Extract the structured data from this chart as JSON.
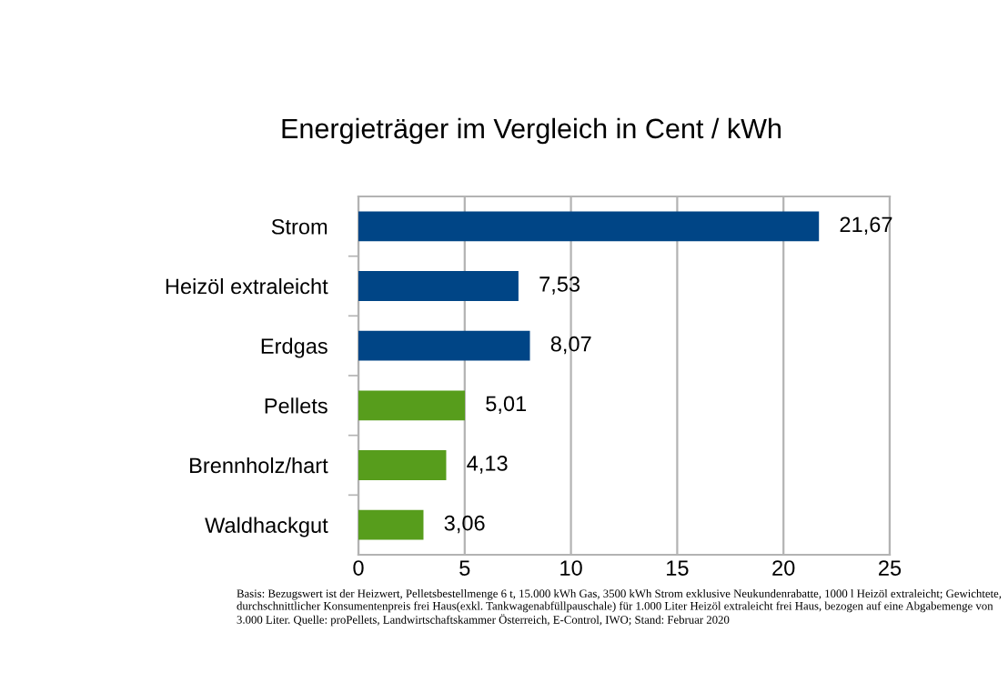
{
  "chart_data": {
    "type": "bar",
    "orientation": "horizontal",
    "title": "Energieträger im Vergleich in Cent / kWh",
    "categories": [
      "Strom",
      "Heizöl extraleicht",
      "Erdgas",
      "Pellets",
      "Brennholz/hart",
      "Waldhackgut"
    ],
    "values": [
      21.67,
      7.53,
      8.07,
      5.01,
      4.13,
      3.06
    ],
    "colors": [
      "#004586",
      "#004586",
      "#004586",
      "#579d1c",
      "#579d1c",
      "#579d1c"
    ],
    "value_labels": [
      "21,67",
      "7,53",
      "8,07",
      "5,01",
      "4,13",
      "3,06"
    ],
    "xlim": [
      0,
      25
    ],
    "xticks": [
      0,
      5,
      10,
      15,
      20,
      25
    ],
    "grid": "x",
    "annotations": [
      "Basis: Bezugswert ist der Heizwert, Pelletsbestellmenge 6 t, 15.000 kWh Gas, 3500 kWh Strom exklusive Neukundenrabatte, 1000 l Heizöl extraleicht; Gewichtete, durchschnittlicher Konsumentenpreis frei Haus(exkl. Tankwagenabfüllpauschale) für 1.000 Liter Heizöl extraleicht frei Haus, bezogen auf eine Abgabemenge von 3.000 Liter. Quelle: proPellets, Landwirtschaftskammer Österreich, E-Control, IWO; Stand: Februar 2020"
    ]
  }
}
